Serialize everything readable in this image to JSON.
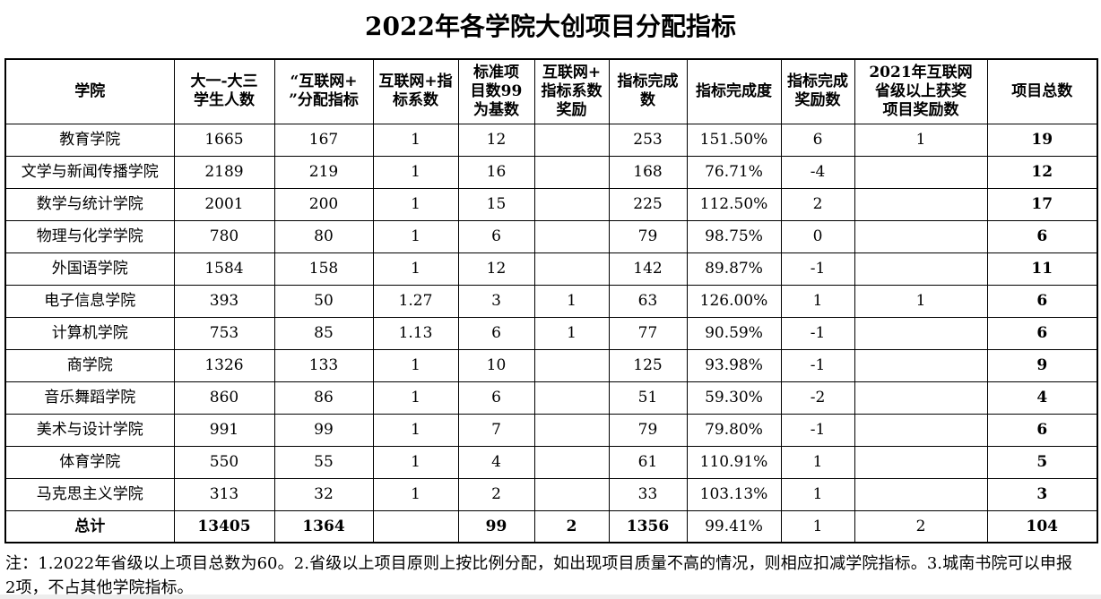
{
  "title": "2022年各学院大创项目分配指标",
  "table": {
    "headers": [
      "学院",
      "大一-大三\n学生人数",
      "“互联网+\n”分配指标",
      "互联网+指\n标系数",
      "标准项\n目数99\n为基数",
      "互联网+\n指标系数\n奖励",
      "指标完成\n数",
      "指标完成度",
      "指标完成\n奖励数",
      "2021年互联网\n省级以上获奖\n项目奖励数",
      "项目总数"
    ],
    "rows": [
      [
        "教育学院",
        "1665",
        "167",
        "1",
        "12",
        "",
        "253",
        "151.50%",
        "6",
        "1",
        "19"
      ],
      [
        "文学与新闻传播学院",
        "2189",
        "219",
        "1",
        "16",
        "",
        "168",
        "76.71%",
        "-4",
        "",
        "12"
      ],
      [
        "数学与统计学院",
        "2001",
        "200",
        "1",
        "15",
        "",
        "225",
        "112.50%",
        "2",
        "",
        "17"
      ],
      [
        "物理与化学学院",
        "780",
        "80",
        "1",
        "6",
        "",
        "79",
        "98.75%",
        "0",
        "",
        "6"
      ],
      [
        "外国语学院",
        "1584",
        "158",
        "1",
        "12",
        "",
        "142",
        "89.87%",
        "-1",
        "",
        "11"
      ],
      [
        "电子信息学院",
        "393",
        "50",
        "1.27",
        "3",
        "1",
        "63",
        "126.00%",
        "1",
        "1",
        "6"
      ],
      [
        "计算机学院",
        "753",
        "85",
        "1.13",
        "6",
        "1",
        "77",
        "90.59%",
        "-1",
        "",
        "6"
      ],
      [
        "商学院",
        "1326",
        "133",
        "1",
        "10",
        "",
        "125",
        "93.98%",
        "-1",
        "",
        "9"
      ],
      [
        "音乐舞蹈学院",
        "860",
        "86",
        "1",
        "6",
        "",
        "51",
        "59.30%",
        "-2",
        "",
        "4"
      ],
      [
        "美术与设计学院",
        "991",
        "99",
        "1",
        "7",
        "",
        "79",
        "79.80%",
        "-1",
        "",
        "6"
      ],
      [
        "体育学院",
        "550",
        "55",
        "1",
        "4",
        "",
        "61",
        "110.91%",
        "1",
        "",
        "5"
      ],
      [
        "马克思主义学院",
        "313",
        "32",
        "1",
        "2",
        "",
        "33",
        "103.13%",
        "1",
        "",
        "3"
      ]
    ],
    "total_row": [
      "总计",
      "13405",
      "1364",
      "",
      "99",
      "2",
      "1356",
      "99.41%",
      "1",
      "2",
      "104"
    ],
    "total_bold_indices": [
      0,
      1,
      2,
      4,
      5,
      6,
      10
    ],
    "bold_column_index": 10
  },
  "note": "注：1.2022年省级以上项目总数为60。2.省级以上项目原则上按比例分配，如出现项目质量不高的情况，则相应扣减学院指标。3.城南书院可以申报2项，不占其他学院指标。"
}
